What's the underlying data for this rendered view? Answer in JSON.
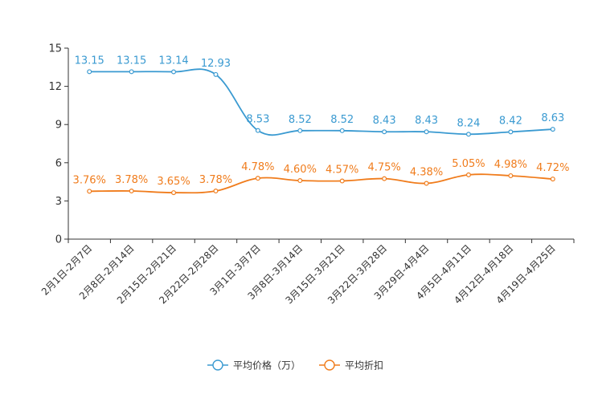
{
  "chart_data": {
    "type": "line",
    "title": "",
    "xlabel": "",
    "ylabel": "",
    "ylim": [
      0,
      15
    ],
    "yticks": [
      0,
      3,
      6,
      9,
      12,
      15
    ],
    "grid": false,
    "legend_position": "bottom",
    "categories": [
      "2月1日-2月7日",
      "2月8日-2月14日",
      "2月15日-2月21日",
      "2月22日-2月28日",
      "3月1日-3月7日",
      "3月8日-3月14日",
      "3月15日-3月21日",
      "3月22日-3月28日",
      "3月29日-4月4日",
      "4月5日-4月11日",
      "4月12日-4月18日",
      "4月19日-4月25日"
    ],
    "series": [
      {
        "name": "平均价格（万）",
        "color": "#3a9ad1",
        "values": [
          13.15,
          13.15,
          13.14,
          12.93,
          8.53,
          8.52,
          8.52,
          8.43,
          8.43,
          8.24,
          8.42,
          8.63
        ],
        "labels": [
          "13.15",
          "13.15",
          "13.14",
          "12.93",
          "8.53",
          "8.52",
          "8.52",
          "8.43",
          "8.43",
          "8.24",
          "8.42",
          "8.63"
        ]
      },
      {
        "name": "平均折扣",
        "color": "#f07c1c",
        "values": [
          3.76,
          3.78,
          3.65,
          3.78,
          4.78,
          4.6,
          4.57,
          4.75,
          4.38,
          5.05,
          4.98,
          4.72
        ],
        "labels": [
          "3.76%",
          "3.78%",
          "3.65%",
          "3.78%",
          "4.78%",
          "4.60%",
          "4.57%",
          "4.75%",
          "4.38%",
          "5.05%",
          "4.98%",
          "4.72%"
        ]
      }
    ]
  }
}
